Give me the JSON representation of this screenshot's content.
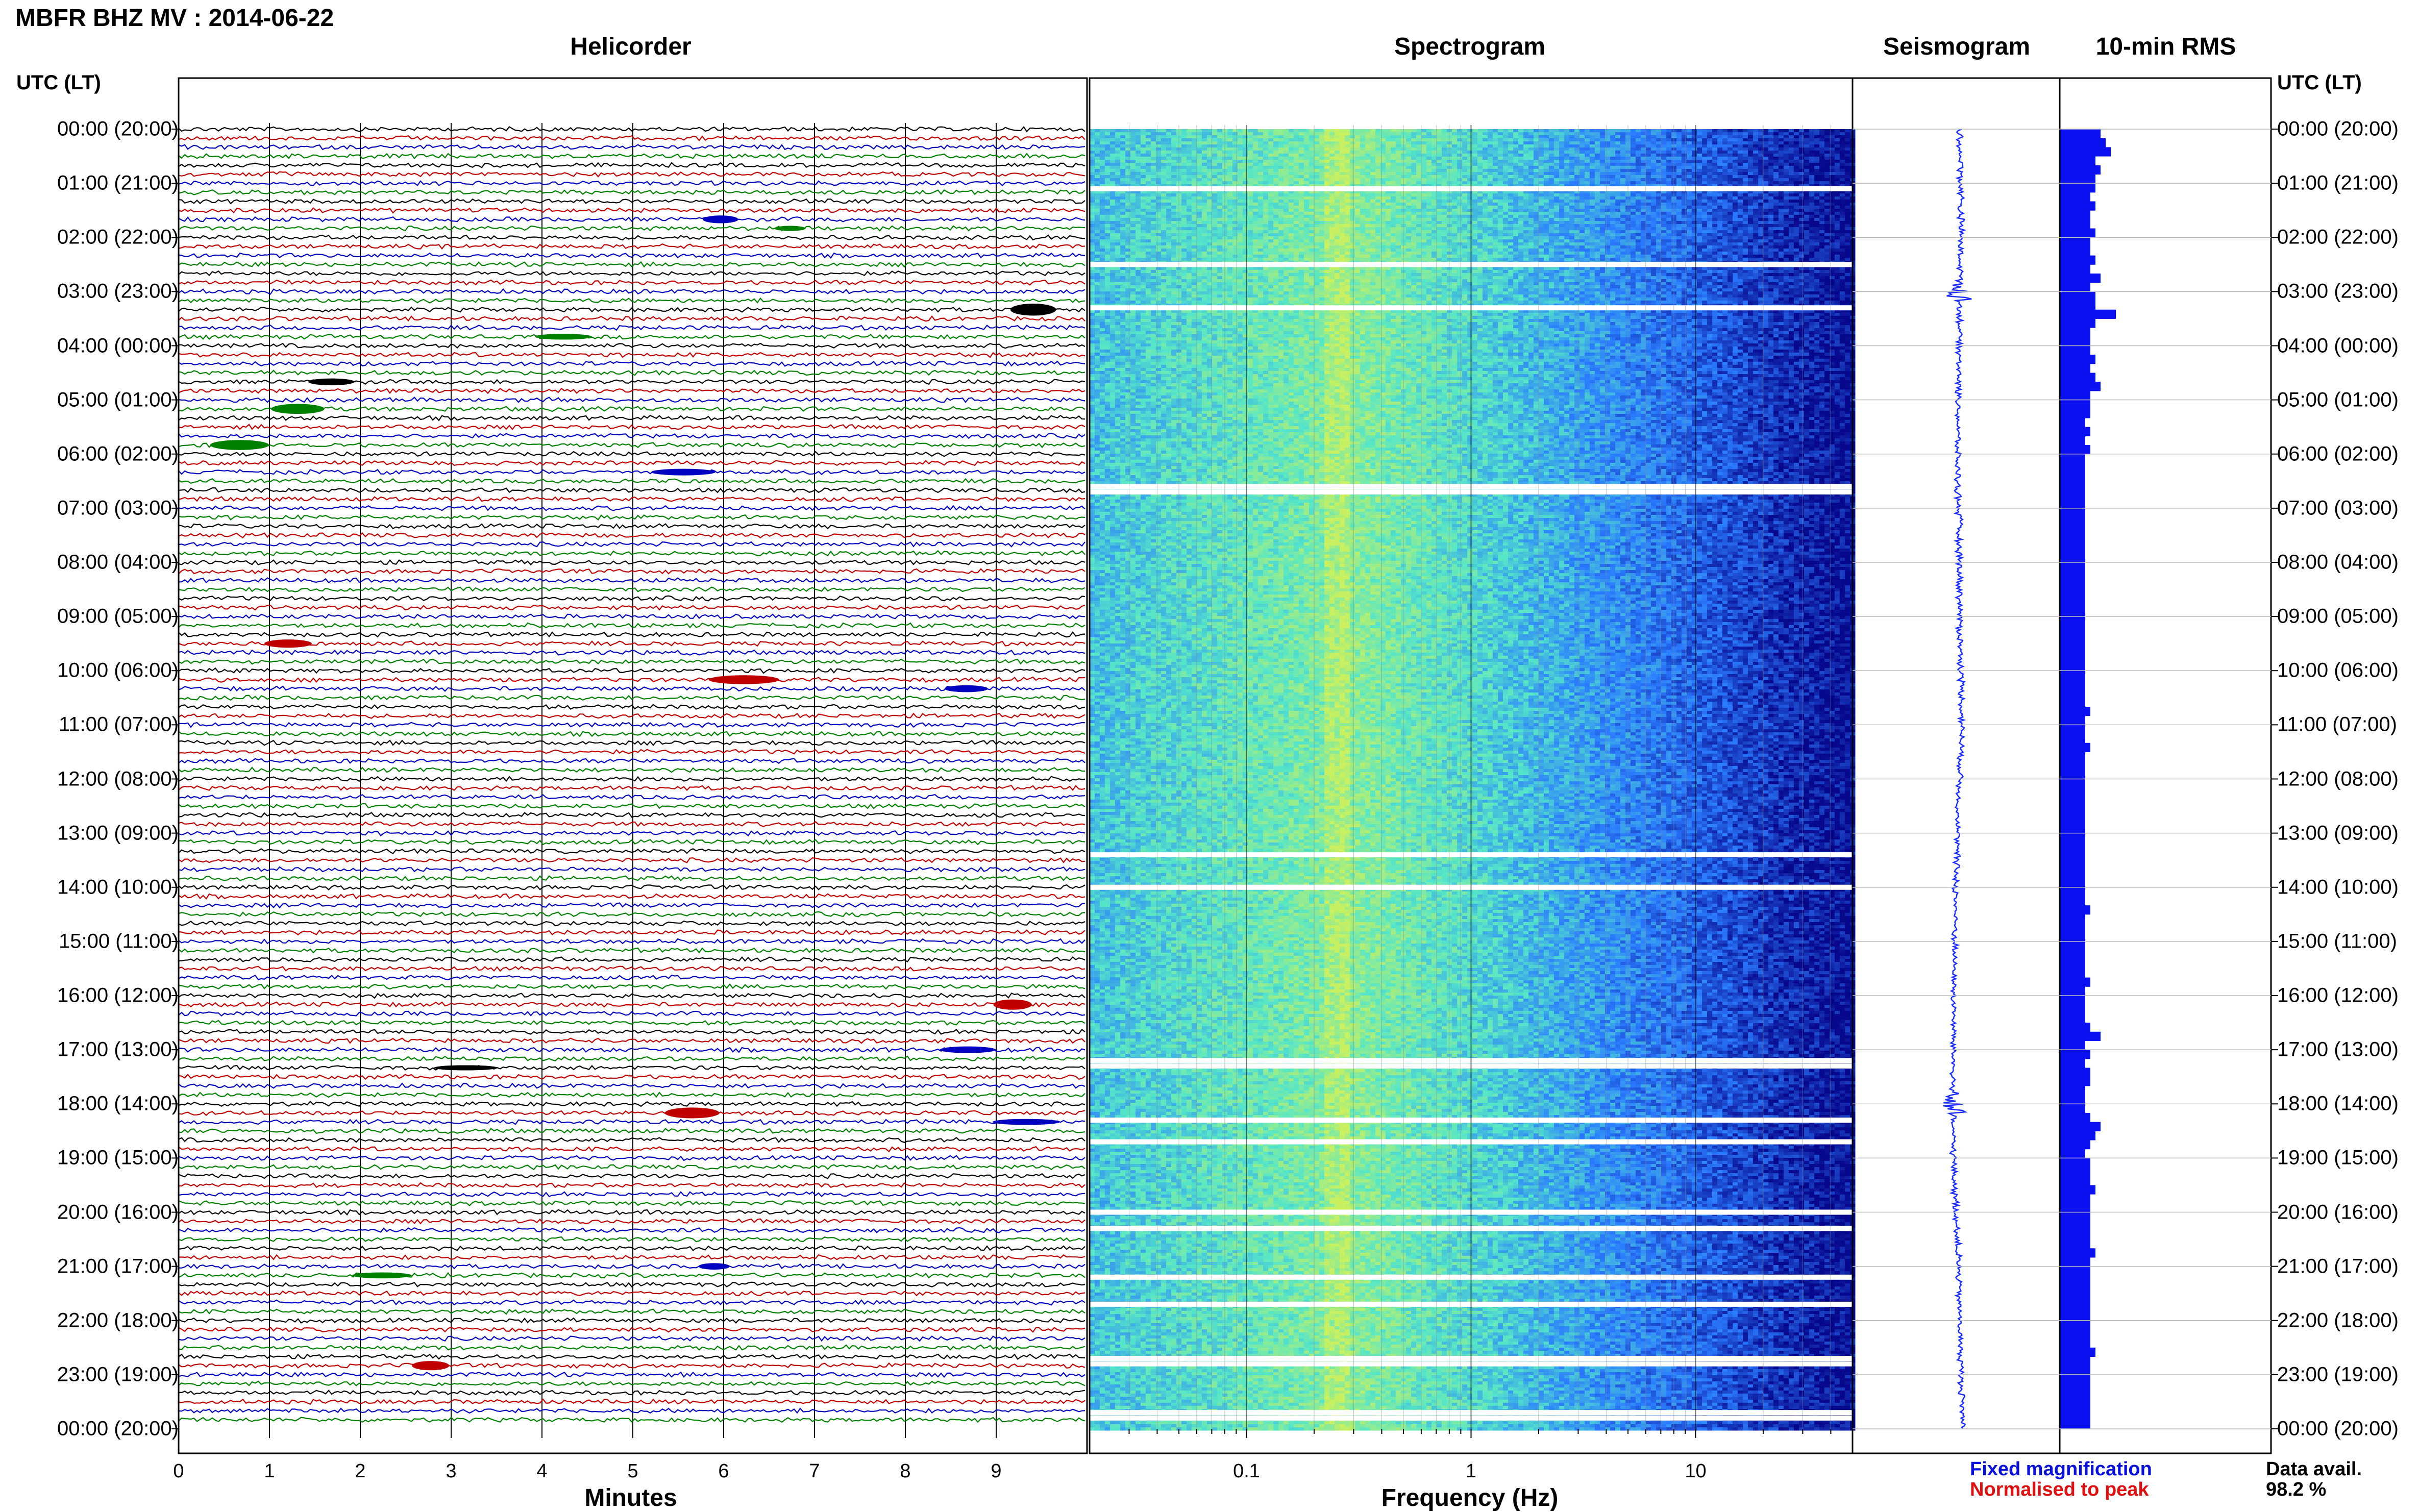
{
  "header": {
    "station_title": "MBFR BHZ MV : 2014-06-22",
    "utc_label": "UTC (LT)"
  },
  "panels": {
    "helicorder_title": "Helicorder",
    "spectrogram_title": "Spectrogram",
    "seismogram_title": "Seismogram",
    "rms_title": "10-min RMS"
  },
  "footer": {
    "minutes_label": "Minutes",
    "frequency_label": "Frequency (Hz)",
    "legend_fixed": "Fixed magnification",
    "legend_normalised": "Normalised to peak",
    "data_avail_label": "Data avail.",
    "data_avail_value": "98.2 %"
  },
  "colors": {
    "trace_cycle": [
      "#000000",
      "#c00000",
      "#0000c0",
      "#008000"
    ],
    "spectro_low": "#08088c",
    "spectro_mid": "#2a7bff",
    "spectro_hi": "#55e6c8",
    "spectro_peak": "#c8f060",
    "rms_bar": "#0a10f0",
    "seismo_trace": "#1a2cff",
    "legend_fixed": "#0a10e0",
    "legend_normalised": "#e01010"
  },
  "chart_data": [
    {
      "type": "helicorder",
      "title": "Helicorder",
      "xlabel": "Minutes",
      "x_ticks": [
        "0",
        "1",
        "2",
        "3",
        "4",
        "5",
        "6",
        "7",
        "8",
        "9"
      ],
      "xlim": [
        0,
        10
      ],
      "time_labels_utc_lt": [
        "00:00 (20:00)",
        "01:00 (21:00)",
        "02:00 (22:00)",
        "03:00 (23:00)",
        "04:00 (00:00)",
        "05:00 (01:00)",
        "06:00 (02:00)",
        "07:00 (03:00)",
        "08:00 (04:00)",
        "09:00 (05:00)",
        "10:00 (06:00)",
        "11:00 (07:00)",
        "12:00 (08:00)",
        "13:00 (09:00)",
        "14:00 (10:00)",
        "15:00 (11:00)",
        "16:00 (12:00)",
        "17:00 (13:00)",
        "18:00 (14:00)",
        "19:00 (15:00)",
        "20:00 (16:00)",
        "21:00 (17:00)",
        "22:00 (18:00)",
        "23:00 (19:00)",
        "00:00 (20:00)"
      ],
      "lines_per_hour": 6
    },
    {
      "type": "heatmap",
      "title": "Spectrogram",
      "xlabel": "Frequency (Hz)",
      "x_scale": "log",
      "xlim": [
        0.02,
        50
      ],
      "x_ticks": [
        0.1,
        1,
        10
      ],
      "x_tick_labels": [
        "0.1",
        "1",
        "10"
      ],
      "microseism_peak_hz": 0.25,
      "data_gaps_utc_hours": [
        1.1,
        2.5,
        3.3,
        6.6,
        6.7,
        13.4,
        14.0,
        17.2,
        17.3,
        18.3,
        18.7,
        20.0,
        20.3,
        21.2,
        21.7,
        22.7,
        22.8,
        23.7,
        23.8
      ]
    },
    {
      "type": "line",
      "title": "Seismogram",
      "orientation": "vertical",
      "drift": [
        0.5,
        0.52,
        0.52,
        0.5,
        0.5,
        0.48,
        0.46,
        0.48,
        0.5,
        0.5,
        0.52,
        0.54,
        0.5,
        0.46,
        0.44,
        0.42,
        0.4,
        0.4,
        0.38,
        0.4,
        0.44,
        0.48,
        0.5,
        0.52,
        0.56
      ]
    },
    {
      "type": "bar",
      "title": "10-min RMS",
      "orientation": "horizontal",
      "bins_per_hour": 6,
      "values": [
        0.8,
        0.9,
        1.0,
        0.7,
        0.8,
        0.7,
        0.7,
        0.6,
        0.7,
        0.6,
        0.6,
        0.7,
        0.6,
        0.6,
        0.7,
        0.6,
        0.8,
        0.6,
        0.7,
        0.7,
        1.1,
        0.7,
        0.6,
        0.6,
        0.6,
        0.7,
        0.6,
        0.7,
        0.8,
        0.6,
        0.6,
        0.6,
        0.5,
        0.6,
        0.5,
        0.6,
        0.5,
        0.5,
        0.5,
        0.5,
        0.5,
        0.5,
        0.5,
        0.5,
        0.5,
        0.5,
        0.5,
        0.5,
        0.5,
        0.5,
        0.5,
        0.5,
        0.5,
        0.5,
        0.5,
        0.5,
        0.5,
        0.5,
        0.5,
        0.5,
        0.5,
        0.5,
        0.5,
        0.5,
        0.6,
        0.5,
        0.5,
        0.5,
        0.6,
        0.5,
        0.5,
        0.5,
        0.5,
        0.5,
        0.5,
        0.5,
        0.5,
        0.5,
        0.5,
        0.5,
        0.5,
        0.5,
        0.5,
        0.5,
        0.5,
        0.5,
        0.6,
        0.5,
        0.5,
        0.5,
        0.5,
        0.5,
        0.5,
        0.5,
        0.6,
        0.5,
        0.5,
        0.5,
        0.5,
        0.6,
        0.8,
        0.5,
        0.6,
        0.5,
        0.6,
        0.6,
        0.5,
        0.5,
        0.5,
        0.6,
        0.8,
        0.7,
        0.6,
        0.5,
        0.6,
        0.6,
        0.6,
        0.7,
        0.6,
        0.6,
        0.6,
        0.6,
        0.6,
        0.6,
        0.7,
        0.6,
        0.6,
        0.6,
        0.6,
        0.6,
        0.6,
        0.6,
        0.6,
        0.6,
        0.6,
        0.7,
        0.6,
        0.6,
        0.6,
        0.6,
        0.6,
        0.6,
        0.6,
        0.6
      ]
    }
  ]
}
